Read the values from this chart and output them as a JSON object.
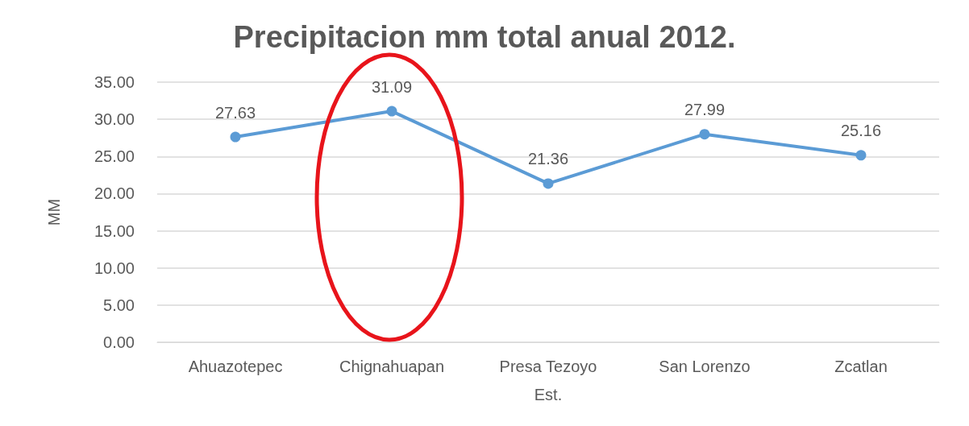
{
  "chart_data": {
    "type": "line",
    "title": "Precipitacion mm total anual 2012.",
    "xlabel": "Est.",
    "ylabel": "MM",
    "categories": [
      "Ahuazotepec",
      "Chignahuapan",
      "Presa Tezoyo",
      "San Lorenzo",
      "Zcatlan"
    ],
    "series": [
      {
        "color": "#5b9bd5",
        "values": [
          27.63,
          31.09,
          21.36,
          27.99,
          25.16
        ]
      }
    ],
    "ylim": [
      0,
      35
    ],
    "yticks": [
      {
        "value": 0,
        "label": "0.00"
      },
      {
        "value": 5,
        "label": "5.00"
      },
      {
        "value": 10,
        "label": "10.00"
      },
      {
        "value": 15,
        "label": "15.00"
      },
      {
        "value": 20,
        "label": "20.00"
      },
      {
        "value": 25,
        "label": "25.00"
      },
      {
        "value": 30,
        "label": "30.00"
      },
      {
        "value": 35,
        "label": "35.00"
      }
    ],
    "grid": "y",
    "data_labels": true,
    "marker": "circle",
    "line_style": "solid"
  }
}
